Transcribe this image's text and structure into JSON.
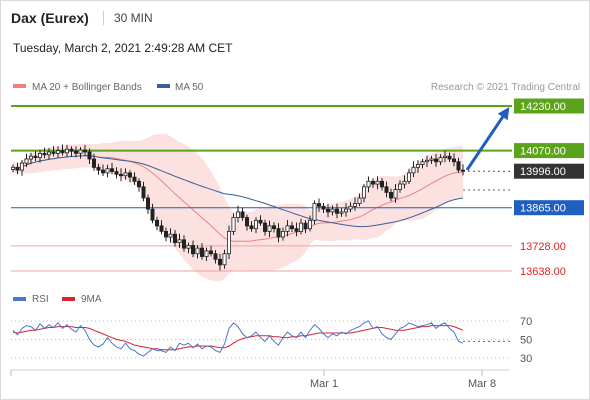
{
  "header": {
    "instrument": "Dax (Eurex)",
    "timeframe": "30 MIN",
    "datetime": "Tuesday, March 2, 2021 2:49:28 AM CET"
  },
  "chart_data": {
    "type": "candlestick",
    "instrument": "Dax (Eurex)",
    "timeframe": "30 MIN",
    "credit": "Research © 2021 Trading Central",
    "legend": [
      {
        "name": "MA 20 + Bollinger Bands",
        "color": "#f08080"
      },
      {
        "name": "MA 50",
        "color": "#3a5f9a"
      }
    ],
    "x_ticks": [
      "Mar 1",
      "Mar 8"
    ],
    "price_range": [
      13600,
      14270
    ],
    "levels": [
      {
        "value": "14230.00",
        "kind": "target",
        "color": "#5aa31a"
      },
      {
        "value": "14070.00",
        "kind": "resistance",
        "color": "#5aa31a"
      },
      {
        "value": "13996.00",
        "kind": "last",
        "color": "#333333"
      },
      {
        "value": "13865.00",
        "kind": "pivot",
        "color": "#1f5fbf"
      },
      {
        "value": "13728.00",
        "kind": "support",
        "color": "#e02020"
      },
      {
        "value": "13638.00",
        "kind": "support",
        "color": "#e02020"
      }
    ],
    "closes": [
      14010,
      14000,
      14025,
      14040,
      14050,
      14045,
      14060,
      14055,
      14065,
      14060,
      14070,
      14062,
      14075,
      14068,
      14060,
      14072,
      14065,
      14040,
      14010,
      14000,
      13990,
      14005,
      13995,
      13985,
      13980,
      13990,
      13975,
      13960,
      13940,
      13900,
      13860,
      13820,
      13800,
      13780,
      13760,
      13770,
      13740,
      13750,
      13720,
      13730,
      13700,
      13720,
      13690,
      13710,
      13700,
      13680,
      13660,
      13700,
      13780,
      13830,
      13850,
      13830,
      13800,
      13790,
      13820,
      13810,
      13780,
      13800,
      13790,
      13760,
      13780,
      13800,
      13790,
      13780,
      13810,
      13790,
      13820,
      13880,
      13870,
      13860,
      13850,
      13860,
      13845,
      13850,
      13860,
      13870,
      13880,
      13900,
      13940,
      13960,
      13950,
      13960,
      13940,
      13920,
      13900,
      13930,
      13950,
      13960,
      13990,
      14010,
      14020,
      14030,
      14035,
      14040,
      14030,
      14045,
      14050,
      14040,
      14030,
      14000,
      13996
    ],
    "rsi": {
      "name": "RSI",
      "color": "#4a78c8",
      "ticks": [
        70,
        50,
        30
      ],
      "range": [
        25,
        75
      ],
      "values": [
        60,
        55,
        62,
        65,
        64,
        60,
        67,
        62,
        66,
        63,
        68,
        62,
        66,
        61,
        58,
        65,
        60,
        50,
        44,
        42,
        45,
        52,
        46,
        42,
        40,
        46,
        40,
        38,
        34,
        32,
        36,
        40,
        38,
        38,
        36,
        42,
        38,
        46,
        44,
        46,
        41,
        45,
        40,
        43,
        42,
        38,
        36,
        45,
        62,
        68,
        64,
        56,
        52,
        54,
        58,
        52,
        48,
        54,
        48,
        44,
        52,
        58,
        54,
        52,
        58,
        52,
        60,
        66,
        62,
        56,
        52,
        56,
        54,
        58,
        56,
        60,
        62,
        64,
        68,
        70,
        62,
        64,
        56,
        52,
        50,
        56,
        62,
        64,
        68,
        66,
        64,
        65,
        66,
        68,
        62,
        66,
        68,
        62,
        58,
        48,
        46
      ],
      "ma_name": "9MA",
      "ma_color": "#d9232e",
      "ma_values": [
        58,
        57,
        58,
        59,
        60,
        60,
        61,
        62,
        63,
        63,
        64,
        64,
        64,
        64,
        63,
        63,
        63,
        62,
        60,
        58,
        56,
        54,
        52,
        50,
        49,
        48,
        46,
        44,
        43,
        42,
        41,
        40,
        40,
        39,
        39,
        39,
        39,
        40,
        41,
        42,
        42,
        43,
        43,
        43,
        43,
        42,
        41,
        41,
        43,
        46,
        49,
        51,
        52,
        53,
        54,
        54,
        54,
        54,
        53,
        53,
        52,
        52,
        53,
        53,
        54,
        54,
        55,
        56,
        57,
        57,
        57,
        57,
        57,
        57,
        57,
        57,
        58,
        59,
        60,
        61,
        62,
        63,
        63,
        62,
        61,
        60,
        60,
        60,
        61,
        62,
        63,
        64,
        64,
        65,
        65,
        65,
        65,
        65,
        64,
        62,
        60
      ]
    }
  }
}
